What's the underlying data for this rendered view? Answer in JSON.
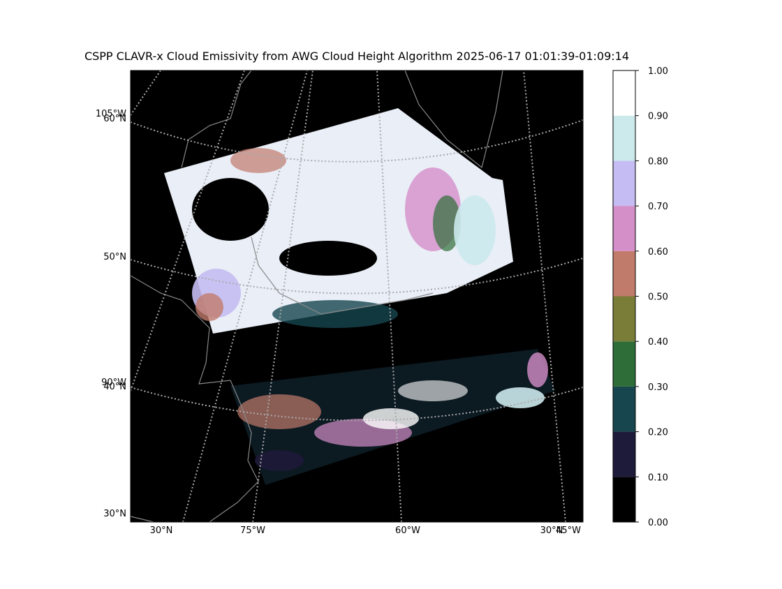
{
  "title": "CSPP CLAVR-x Cloud Emissivity from AWG Cloud Height Algorithm 2025-06-17 01:01:39-01:09:14",
  "map": {
    "labels": [
      "105°W",
      "60°N",
      "50°N",
      "90°W",
      "40°N",
      "30°N",
      "30°N",
      "75°W",
      "60°W",
      "30°N",
      "45°W"
    ]
  },
  "colorbar": {
    "lim": [
      0,
      1
    ],
    "ticks": [
      {
        "value": 0,
        "label": "0.00"
      },
      {
        "value": 0.1,
        "label": "0.10"
      },
      {
        "value": 0.2,
        "label": "0.20"
      },
      {
        "value": 0.3,
        "label": "0.30"
      },
      {
        "value": 0.4,
        "label": "0.40"
      },
      {
        "value": 0.5,
        "label": "0.50"
      },
      {
        "value": 0.6,
        "label": "0.60"
      },
      {
        "value": 0.7,
        "label": "0.70"
      },
      {
        "value": 0.8,
        "label": "0.80"
      },
      {
        "value": 0.9,
        "label": "0.90"
      },
      {
        "value": 1,
        "label": "1.00"
      }
    ],
    "colors": [
      "#000000",
      "#1e1a3a",
      "#17464f",
      "#2e6d37",
      "#7a7d37",
      "#c07b6b",
      "#d48fc9",
      "#c4bcf2",
      "#cce9ec",
      "#ffffff"
    ]
  }
}
